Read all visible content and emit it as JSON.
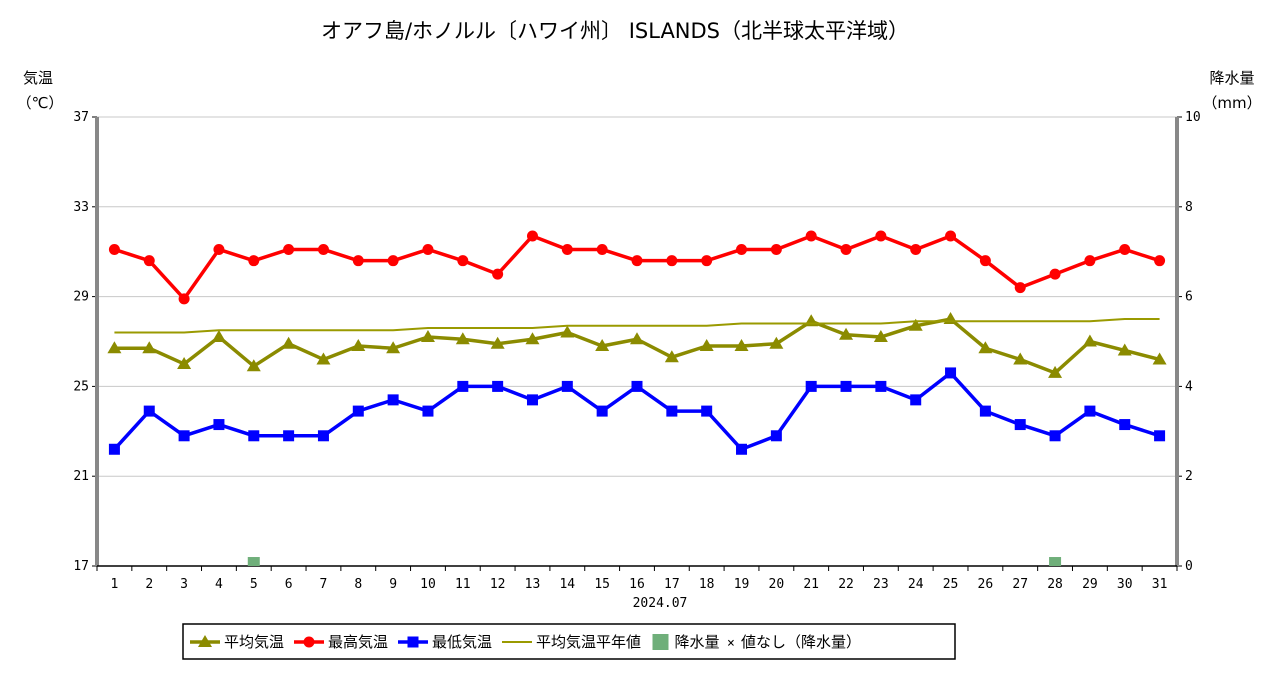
{
  "chart_data": {
    "type": "line",
    "title": "オアフ島/ホノルル〔ハワイ州〕 ISLANDS（北半球太平洋域）",
    "xlabel": "2024.07",
    "ylabel_left": [
      "気温",
      "（℃）"
    ],
    "ylabel_right": [
      "降水量",
      "（mm）"
    ],
    "x": [
      "1",
      "2",
      "3",
      "4",
      "5",
      "6",
      "7",
      "8",
      "9",
      "10",
      "11",
      "12",
      "13",
      "14",
      "15",
      "16",
      "17",
      "18",
      "19",
      "20",
      "21",
      "22",
      "23",
      "24",
      "25",
      "26",
      "27",
      "28",
      "29",
      "30",
      "31"
    ],
    "y_left": {
      "min": 17,
      "max": 37,
      "ticks": [
        "17",
        "21",
        "25",
        "29",
        "33",
        "37"
      ]
    },
    "y_right": {
      "min": 0,
      "max": 10,
      "ticks": [
        "0",
        "2",
        "4",
        "6",
        "8",
        "10"
      ]
    },
    "grid": true,
    "legend_position": "bottom",
    "series": [
      {
        "name": "平均気温",
        "color": "#8B8B00",
        "marker": "triangle",
        "values": [
          26.7,
          26.7,
          26.0,
          27.2,
          25.9,
          26.9,
          26.2,
          26.8,
          26.7,
          27.2,
          27.1,
          26.9,
          27.1,
          27.4,
          26.8,
          27.1,
          26.3,
          26.8,
          26.8,
          26.9,
          27.9,
          27.3,
          27.2,
          27.7,
          28.0,
          26.7,
          26.2,
          25.6,
          27.0,
          26.6,
          26.2
        ]
      },
      {
        "name": "最高気温",
        "color": "#FF0000",
        "marker": "circle",
        "values": [
          31.1,
          30.6,
          28.9,
          31.1,
          30.6,
          31.1,
          31.1,
          30.6,
          30.6,
          31.1,
          30.6,
          30.0,
          31.7,
          31.1,
          31.1,
          30.6,
          30.6,
          30.6,
          31.1,
          31.1,
          31.7,
          31.1,
          31.7,
          31.1,
          31.7,
          30.6,
          29.4,
          30.0,
          30.6,
          31.1,
          30.6
        ]
      },
      {
        "name": "最低気温",
        "color": "#0000FF",
        "marker": "square",
        "values": [
          22.2,
          23.9,
          22.8,
          23.3,
          22.8,
          22.8,
          22.8,
          23.9,
          24.4,
          23.9,
          25.0,
          25.0,
          24.4,
          25.0,
          23.9,
          25.0,
          23.9,
          23.9,
          22.2,
          22.8,
          25.0,
          25.0,
          25.0,
          24.4,
          25.6,
          23.9,
          23.3,
          22.8,
          23.9,
          23.3,
          22.8
        ]
      },
      {
        "name": "平均気温平年値",
        "color": "#9A9A00",
        "marker": "none",
        "values": [
          27.4,
          27.4,
          27.4,
          27.5,
          27.5,
          27.5,
          27.5,
          27.5,
          27.5,
          27.6,
          27.6,
          27.6,
          27.6,
          27.7,
          27.7,
          27.7,
          27.7,
          27.7,
          27.8,
          27.8,
          27.8,
          27.8,
          27.8,
          27.9,
          27.9,
          27.9,
          27.9,
          27.9,
          27.9,
          28.0,
          28.0
        ]
      }
    ],
    "precipitation": {
      "name": "降水量",
      "color": "#6FAF7A",
      "values": [
        0,
        0,
        0,
        0,
        0.2,
        0,
        0,
        0,
        0,
        0,
        0,
        0,
        0,
        0,
        0,
        0,
        0,
        0,
        0,
        0,
        0,
        0,
        0,
        0,
        0,
        0,
        0,
        0.2,
        0,
        0,
        0
      ]
    },
    "legend_extra": {
      "missing_marker": "×",
      "missing_text": "値なし（降水量）"
    }
  }
}
